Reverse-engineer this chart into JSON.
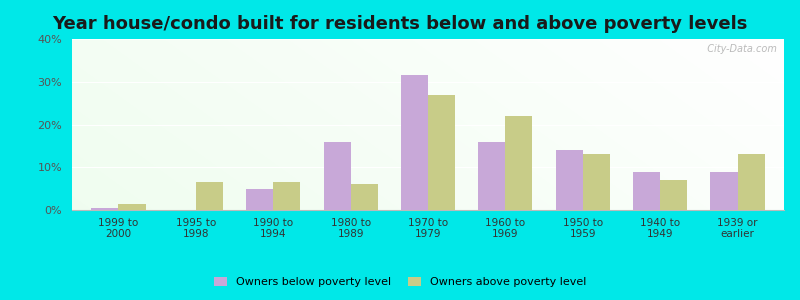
{
  "title": "Year house/condo built for residents below and above poverty levels",
  "categories": [
    "1999 to\n2000",
    "1995 to\n1998",
    "1990 to\n1994",
    "1980 to\n1989",
    "1970 to\n1979",
    "1960 to\n1969",
    "1950 to\n1959",
    "1940 to\n1949",
    "1939 or\nearlier"
  ],
  "below_poverty": [
    0.5,
    0.0,
    5.0,
    16.0,
    31.5,
    16.0,
    14.0,
    9.0,
    9.0
  ],
  "above_poverty": [
    1.5,
    6.5,
    6.5,
    6.0,
    27.0,
    22.0,
    13.0,
    7.0,
    13.0
  ],
  "below_color": "#c8a8d8",
  "above_color": "#c8cc88",
  "ylim": [
    0,
    40
  ],
  "yticks": [
    0,
    10,
    20,
    30,
    40
  ],
  "ytick_labels": [
    "0%",
    "10%",
    "20%",
    "30%",
    "40%"
  ],
  "outer_background": "#00e8e8",
  "legend_below": "Owners below poverty level",
  "legend_above": "Owners above poverty level",
  "title_fontsize": 13,
  "watermark": "  City-Data.com"
}
